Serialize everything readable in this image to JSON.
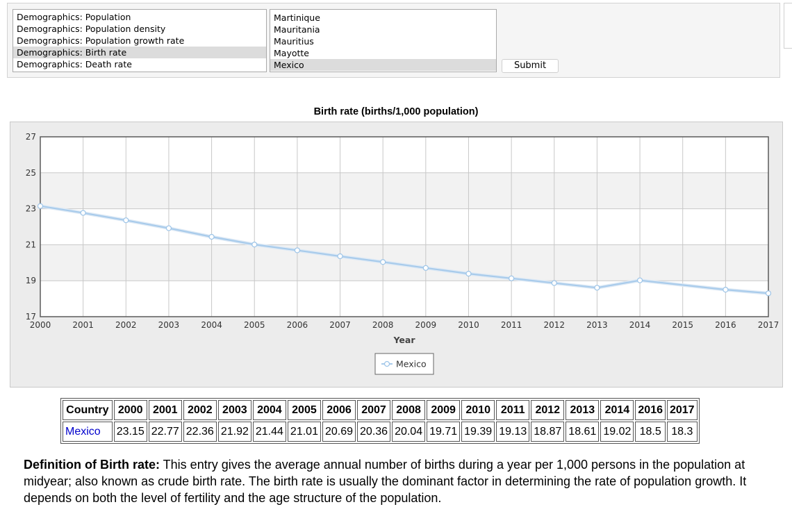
{
  "indicator_list": {
    "options": [
      "Demographics: Population",
      "Demographics: Population density",
      "Demographics: Population growth rate",
      "Demographics: Birth rate",
      "Demographics: Death rate"
    ],
    "selected_index": 3
  },
  "country_list": {
    "options": [
      "Martinique",
      "Mauritania",
      "Mauritius",
      "Mayotte",
      "Mexico"
    ],
    "selected_index": 4
  },
  "submit_label": "Submit",
  "chart_data": {
    "type": "line",
    "title": "Birth rate (births/1,000 population)",
    "xlabel": "Year",
    "ylabel": "",
    "x": [
      2000,
      2001,
      2002,
      2003,
      2004,
      2005,
      2006,
      2007,
      2008,
      2009,
      2010,
      2011,
      2012,
      2013,
      2014,
      2016,
      2017
    ],
    "series": [
      {
        "name": "Mexico",
        "values": [
          23.15,
          22.77,
          22.36,
          21.92,
          21.44,
          21.01,
          20.69,
          20.36,
          20.04,
          19.71,
          19.39,
          19.13,
          18.87,
          18.61,
          19.02,
          18.5,
          18.3
        ]
      }
    ],
    "xlim": [
      2000,
      2017
    ],
    "ylim": [
      17,
      27
    ],
    "xticks": [
      2000,
      2001,
      2002,
      2003,
      2004,
      2005,
      2006,
      2007,
      2008,
      2009,
      2010,
      2011,
      2012,
      2013,
      2014,
      2015,
      2016,
      2017
    ],
    "yticks": [
      17,
      19,
      21,
      23,
      25,
      27
    ],
    "grid": true,
    "legend_position": "bottom-center",
    "line_color": "#a8cbeb",
    "band_color": "#f2f2f2"
  },
  "table": {
    "header_first": "Country",
    "years": [
      "2000",
      "2001",
      "2002",
      "2003",
      "2004",
      "2005",
      "2006",
      "2007",
      "2008",
      "2009",
      "2010",
      "2011",
      "2012",
      "2013",
      "2014",
      "2016",
      "2017"
    ],
    "country": "Mexico",
    "values": [
      "23.15",
      "22.77",
      "22.36",
      "21.92",
      "21.44",
      "21.01",
      "20.69",
      "20.36",
      "20.04",
      "19.71",
      "19.39",
      "19.13",
      "18.87",
      "18.61",
      "19.02",
      "18.5",
      "18.3"
    ]
  },
  "definition": {
    "label": "Definition of Birth rate:",
    "text": " This entry gives the average annual number of births during a year per 1,000 persons in the population at midyear; also known as crude birth rate. The birth rate is usually the dominant factor in determining the rate of population growth. It depends on both the level of fertility and the age structure of the population."
  }
}
